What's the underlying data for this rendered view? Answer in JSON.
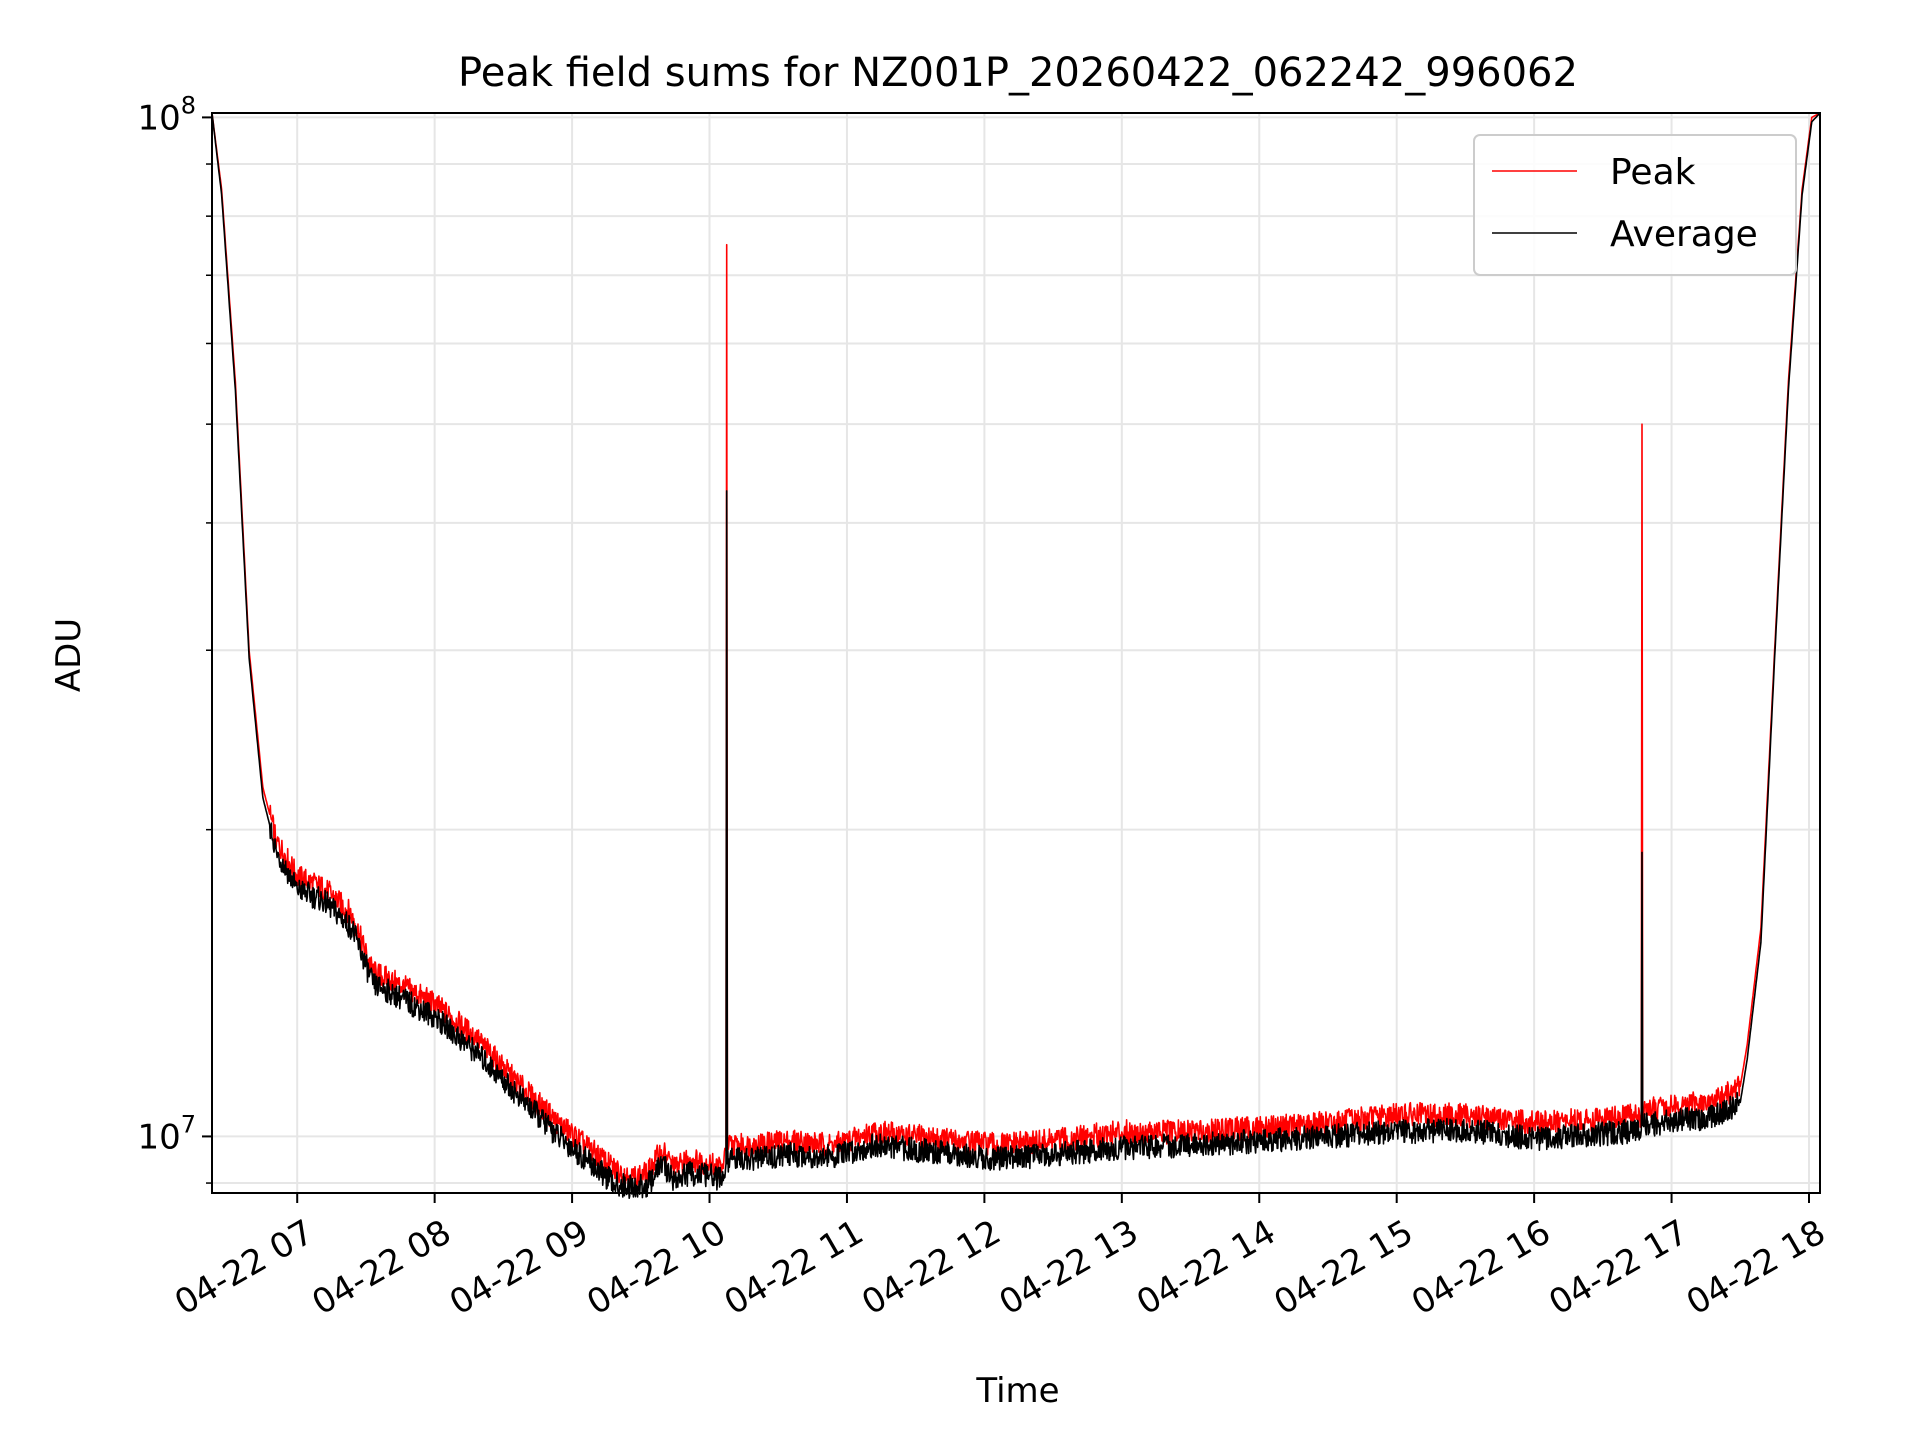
{
  "chart_data": {
    "type": "line",
    "title": "Peak field sums for NZ001P_20260422_062242_996062",
    "xlabel": "Time",
    "ylabel": "ADU",
    "yscale": "log",
    "ylim": [
      8800000,
      101000000
    ],
    "xlim_hours": [
      6.38,
      18.08
    ],
    "x_ticks": [
      {
        "label": "04-22 07",
        "hour": 7
      },
      {
        "label": "04-22 08",
        "hour": 8
      },
      {
        "label": "04-22 09",
        "hour": 9
      },
      {
        "label": "04-22 10",
        "hour": 10
      },
      {
        "label": "04-22 11",
        "hour": 11
      },
      {
        "label": "04-22 12",
        "hour": 12
      },
      {
        "label": "04-22 13",
        "hour": 13
      },
      {
        "label": "04-22 14",
        "hour": 14
      },
      {
        "label": "04-22 15",
        "hour": 15
      },
      {
        "label": "04-22 16",
        "hour": 16
      },
      {
        "label": "04-22 17",
        "hour": 17
      },
      {
        "label": "04-22 18",
        "hour": 18
      }
    ],
    "y_major_ticks": [
      {
        "base": "10",
        "exp": "7",
        "value": 10000000
      },
      {
        "base": "10",
        "exp": "8",
        "value": 100000000
      }
    ],
    "grid": true,
    "legend_position": "upper right",
    "series": [
      {
        "name": "Peak",
        "color": "#ff0000",
        "x": [
          6.38,
          6.45,
          6.55,
          6.65,
          6.75,
          6.85,
          7.0,
          7.2,
          7.4,
          7.55,
          7.7,
          8.0,
          8.3,
          8.6,
          8.9,
          9.1,
          9.3,
          9.45,
          9.55,
          9.65,
          9.75,
          9.85,
          10.0,
          10.1,
          10.12,
          10.125,
          10.13,
          10.14,
          10.3,
          10.6,
          10.9,
          11.2,
          11.5,
          11.8,
          12.1,
          12.5,
          13.0,
          13.5,
          14.0,
          14.5,
          15.0,
          15.5,
          16.0,
          16.5,
          16.78,
          16.785,
          16.79,
          16.8,
          17.0,
          17.3,
          17.5,
          17.55,
          17.65,
          17.75,
          17.85,
          17.95,
          18.02,
          18.08
        ],
        "y": [
          101000000,
          85000000,
          55000000,
          30000000,
          22000000,
          19500000,
          18000000,
          17500000,
          16500000,
          14500000,
          14200000,
          13500000,
          12500000,
          11300000,
          10300000,
          9800000,
          9300000,
          9100000,
          9200000,
          9700000,
          9300000,
          9500000,
          9400000,
          9300000,
          9700000,
          75000000,
          9700000,
          9800000,
          9800000,
          9900000,
          9800000,
          10100000,
          10000000,
          9900000,
          9800000,
          9900000,
          10100000,
          10100000,
          10200000,
          10300000,
          10500000,
          10500000,
          10300000,
          10400000,
          10500000,
          50000000,
          10600000,
          10600000,
          10700000,
          10800000,
          11200000,
          12300000,
          16000000,
          30000000,
          55000000,
          85000000,
          100000000,
          101000000
        ]
      },
      {
        "name": "Average",
        "color": "#000000",
        "x": [
          6.38,
          6.45,
          6.55,
          6.65,
          6.75,
          6.85,
          7.0,
          7.2,
          7.4,
          7.55,
          7.7,
          8.0,
          8.3,
          8.6,
          8.9,
          9.1,
          9.3,
          9.45,
          9.55,
          9.65,
          9.75,
          9.85,
          10.0,
          10.1,
          10.12,
          10.125,
          10.13,
          10.14,
          10.3,
          10.6,
          10.9,
          11.2,
          11.5,
          11.8,
          12.1,
          12.5,
          13.0,
          13.5,
          14.0,
          14.5,
          15.0,
          15.5,
          16.0,
          16.5,
          16.78,
          16.785,
          16.79,
          16.8,
          17.0,
          17.3,
          17.5,
          17.55,
          17.65,
          17.75,
          17.85,
          17.95,
          18.02,
          18.08
        ],
        "y": [
          101000000,
          84000000,
          54000000,
          29500000,
          21500000,
          19000000,
          17500000,
          17000000,
          16000000,
          14100000,
          13800000,
          13100000,
          12100000,
          11000000,
          10000000,
          9500000,
          9000000,
          8900000,
          8950000,
          9400000,
          9050000,
          9200000,
          9150000,
          9050000,
          9400000,
          43000000,
          9400000,
          9500000,
          9500000,
          9600000,
          9550000,
          9800000,
          9700000,
          9600000,
          9500000,
          9600000,
          9750000,
          9800000,
          9900000,
          10000000,
          10100000,
          10150000,
          9950000,
          10050000,
          10150000,
          19000000,
          10250000,
          10250000,
          10350000,
          10450000,
          10800000,
          11900000,
          15500000,
          29500000,
          54000000,
          84000000,
          99000000,
          101000000
        ]
      }
    ]
  }
}
